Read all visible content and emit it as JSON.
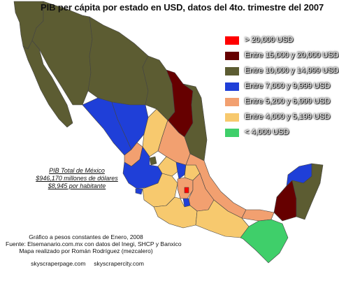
{
  "title": "PIB per cápita por estado en USD, datos del 4to. trimestre del 2007",
  "legend": [
    {
      "label": "> 20,000 USD",
      "color": "#ff0000"
    },
    {
      "label": "Entre 15,000 y 20,000 USD",
      "color": "#660000"
    },
    {
      "label": "Entre 10,000 y 14,999 USD",
      "color": "#5c5c32"
    },
    {
      "label": "Entre 7,000 y 9,999 USD",
      "color": "#1f3fd8"
    },
    {
      "label": "Entre 5,200 y 6,999 USD",
      "color": "#f2a070"
    },
    {
      "label": "Entre 4,000 y 5,199 USD",
      "color": "#f7c96e"
    },
    {
      "label": "< 4,000 USD",
      "color": "#3fcf6a"
    }
  ],
  "pib": {
    "line1": "PIB Total de México",
    "line2": "$946,170 millones de dólares",
    "line3": "$8,945 por habitante"
  },
  "credits": {
    "line1": "Gráfico a pesos constantes de Enero, 2008",
    "line2": "Fuente: Elsemanario.com.mx con datos del Inegi, SHCP y Banxico",
    "line3": "Mapa realizado por Román Rodríguez (mezcalero)"
  },
  "footer": {
    "site1": "skyscraperpage.com",
    "site2": "skyscrapercity.com"
  }
}
